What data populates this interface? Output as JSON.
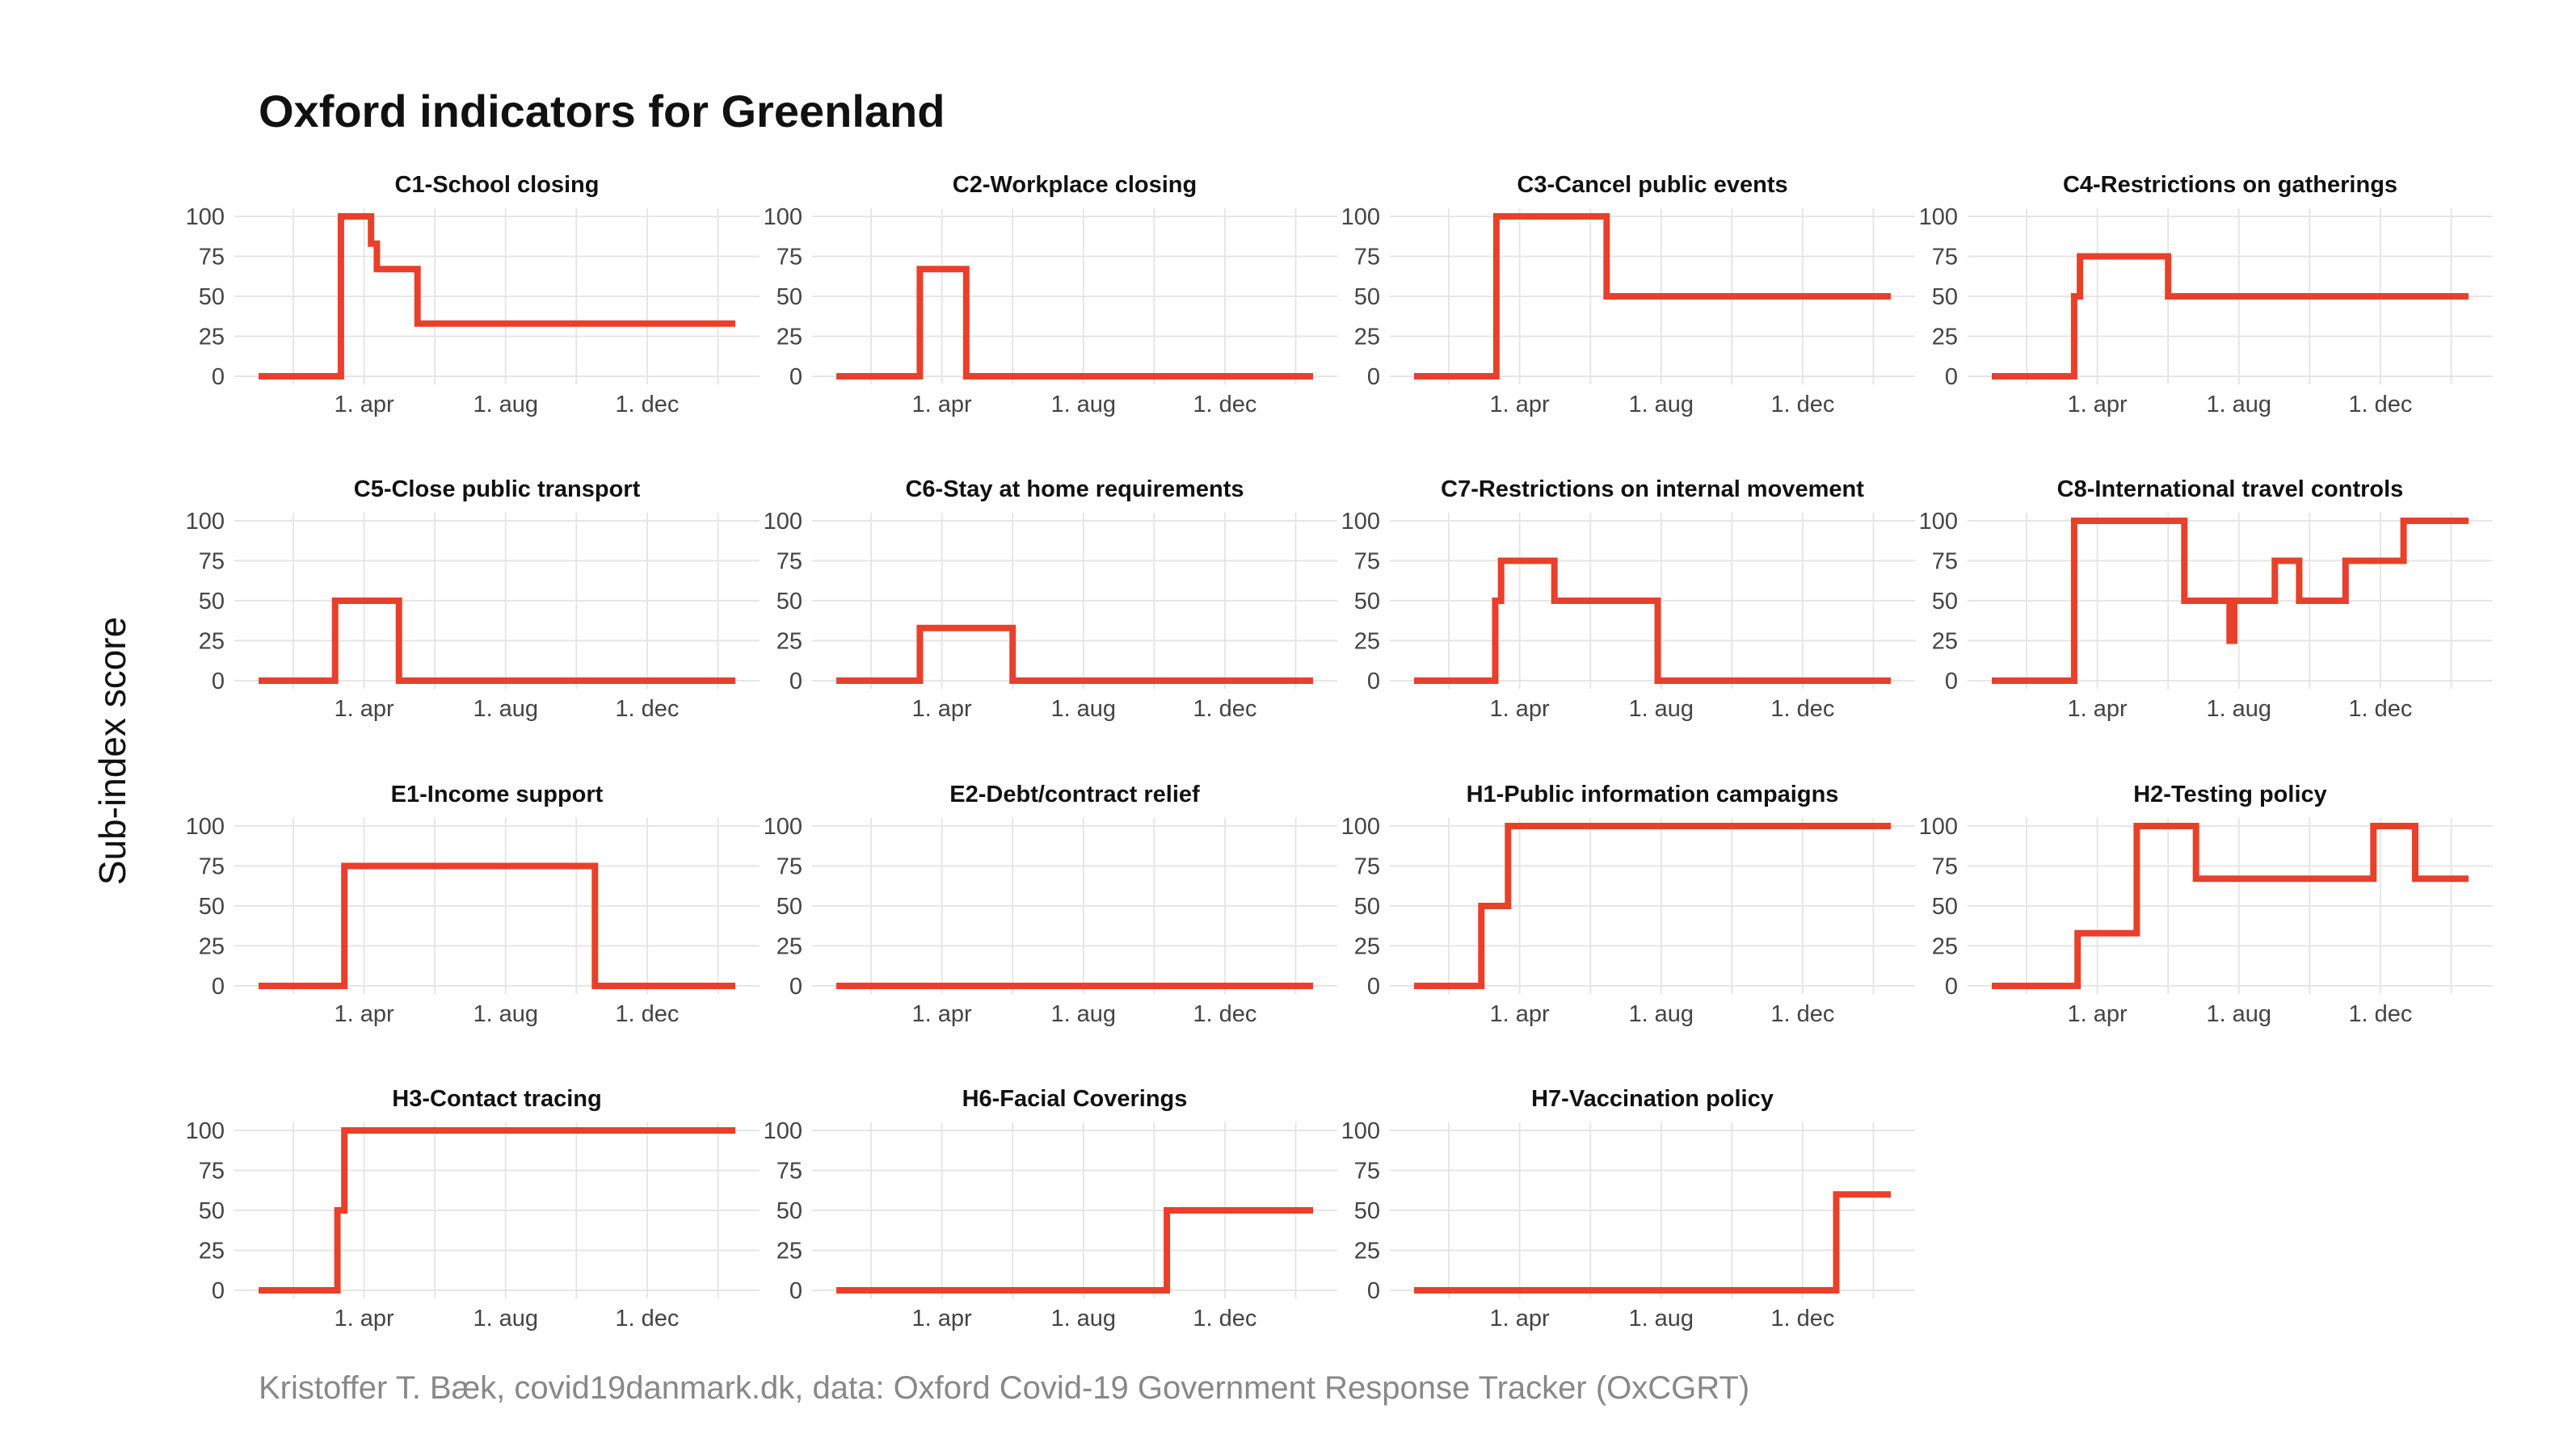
{
  "title": "Oxford indicators for Greenland",
  "ylabel": "Sub-index score",
  "caption": "Kristoffer T. Bæk, covid19danmark.dk, data: Oxford Covid-19 Government Response Tracker (OxCGRT)",
  "colors": {
    "line": "#e8402a",
    "grid": "#e6e6e6",
    "text": "#111111",
    "caption": "#888888"
  },
  "chart_data": {
    "type": "line",
    "facet_layout": {
      "columns": 4,
      "rows": 4
    },
    "x_axis": {
      "start": "2020-01-01",
      "end": "2021-02-15",
      "ticks": [
        "2020-04-01",
        "2020-08-01",
        "2020-12-01"
      ],
      "tick_labels": [
        "1. apr",
        "1. aug",
        "1. dec"
      ]
    },
    "y_axis": {
      "range": [
        0,
        100
      ],
      "ticks": [
        0,
        25,
        50,
        75,
        100
      ],
      "tick_labels": [
        "0",
        "25",
        "50",
        "75",
        "100"
      ]
    },
    "grid": true,
    "panels": [
      {
        "name": "C1-School closing",
        "points": [
          [
            "2020-01-01",
            0
          ],
          [
            "2020-03-12",
            0
          ],
          [
            "2020-03-12",
            100
          ],
          [
            "2020-04-07",
            100
          ],
          [
            "2020-04-07",
            83
          ],
          [
            "2020-04-12",
            83
          ],
          [
            "2020-04-12",
            67
          ],
          [
            "2020-05-17",
            67
          ],
          [
            "2020-05-17",
            33
          ],
          [
            "2021-02-15",
            33
          ]
        ]
      },
      {
        "name": "C2-Workplace closing",
        "points": [
          [
            "2020-01-01",
            0
          ],
          [
            "2020-03-13",
            0
          ],
          [
            "2020-03-13",
            67
          ],
          [
            "2020-04-22",
            67
          ],
          [
            "2020-04-22",
            0
          ],
          [
            "2021-02-15",
            0
          ]
        ]
      },
      {
        "name": "C3-Cancel public events",
        "points": [
          [
            "2020-01-01",
            0
          ],
          [
            "2020-03-12",
            0
          ],
          [
            "2020-03-12",
            100
          ],
          [
            "2020-06-15",
            100
          ],
          [
            "2020-06-15",
            50
          ],
          [
            "2021-02-15",
            50
          ]
        ]
      },
      {
        "name": "C4-Restrictions on gatherings",
        "points": [
          [
            "2020-01-01",
            0
          ],
          [
            "2020-03-12",
            0
          ],
          [
            "2020-03-12",
            50
          ],
          [
            "2020-03-17",
            50
          ],
          [
            "2020-03-17",
            75
          ],
          [
            "2020-06-01",
            75
          ],
          [
            "2020-06-01",
            50
          ],
          [
            "2021-02-15",
            50
          ]
        ]
      },
      {
        "name": "C5-Close public transport",
        "points": [
          [
            "2020-01-01",
            0
          ],
          [
            "2020-03-07",
            0
          ],
          [
            "2020-03-07",
            50
          ],
          [
            "2020-05-01",
            50
          ],
          [
            "2020-05-01",
            0
          ],
          [
            "2021-02-15",
            0
          ]
        ]
      },
      {
        "name": "C6-Stay at home requirements",
        "points": [
          [
            "2020-01-01",
            0
          ],
          [
            "2020-03-13",
            0
          ],
          [
            "2020-03-13",
            33
          ],
          [
            "2020-06-01",
            33
          ],
          [
            "2020-06-01",
            0
          ],
          [
            "2021-02-15",
            0
          ]
        ]
      },
      {
        "name": "C7-Restrictions on internal movement",
        "points": [
          [
            "2020-01-01",
            0
          ],
          [
            "2020-03-11",
            0
          ],
          [
            "2020-03-11",
            50
          ],
          [
            "2020-03-16",
            50
          ],
          [
            "2020-03-16",
            75
          ],
          [
            "2020-05-01",
            75
          ],
          [
            "2020-05-01",
            50
          ],
          [
            "2020-07-29",
            50
          ],
          [
            "2020-07-29",
            0
          ],
          [
            "2021-02-15",
            0
          ]
        ]
      },
      {
        "name": "C8-International travel controls",
        "points": [
          [
            "2020-01-01",
            0
          ],
          [
            "2020-03-12",
            0
          ],
          [
            "2020-03-12",
            100
          ],
          [
            "2020-06-15",
            100
          ],
          [
            "2020-06-15",
            50
          ],
          [
            "2020-07-24",
            50
          ],
          [
            "2020-07-24",
            25
          ],
          [
            "2020-07-28",
            25
          ],
          [
            "2020-07-28",
            50
          ],
          [
            "2020-09-01",
            50
          ],
          [
            "2020-09-01",
            75
          ],
          [
            "2020-09-22",
            75
          ],
          [
            "2020-09-22",
            50
          ],
          [
            "2020-11-01",
            50
          ],
          [
            "2020-11-01",
            75
          ],
          [
            "2020-12-21",
            75
          ],
          [
            "2020-12-21",
            100
          ],
          [
            "2021-02-15",
            100
          ]
        ]
      },
      {
        "name": "E1-Income support",
        "points": [
          [
            "2020-01-01",
            0
          ],
          [
            "2020-03-15",
            0
          ],
          [
            "2020-03-15",
            75
          ],
          [
            "2020-10-17",
            75
          ],
          [
            "2020-10-17",
            0
          ],
          [
            "2021-02-15",
            0
          ]
        ]
      },
      {
        "name": "E2-Debt/contract relief",
        "points": [
          [
            "2020-01-01",
            0
          ],
          [
            "2021-02-15",
            0
          ]
        ]
      },
      {
        "name": "H1-Public information campaigns",
        "points": [
          [
            "2020-01-01",
            0
          ],
          [
            "2020-02-28",
            0
          ],
          [
            "2020-02-28",
            50
          ],
          [
            "2020-03-22",
            50
          ],
          [
            "2020-03-22",
            100
          ],
          [
            "2021-02-15",
            100
          ]
        ]
      },
      {
        "name": "H2-Testing policy",
        "points": [
          [
            "2020-01-01",
            0
          ],
          [
            "2020-03-15",
            0
          ],
          [
            "2020-03-15",
            33
          ],
          [
            "2020-05-05",
            33
          ],
          [
            "2020-05-05",
            100
          ],
          [
            "2020-06-25",
            100
          ],
          [
            "2020-06-25",
            67
          ],
          [
            "2020-11-25",
            67
          ],
          [
            "2020-11-25",
            100
          ],
          [
            "2020-12-31",
            100
          ],
          [
            "2020-12-31",
            67
          ],
          [
            "2021-02-15",
            67
          ]
        ]
      },
      {
        "name": "H3-Contact tracing",
        "points": [
          [
            "2020-01-01",
            0
          ],
          [
            "2020-03-09",
            0
          ],
          [
            "2020-03-09",
            50
          ],
          [
            "2020-03-15",
            50
          ],
          [
            "2020-03-15",
            100
          ],
          [
            "2021-02-15",
            100
          ]
        ]
      },
      {
        "name": "H6-Facial Coverings",
        "points": [
          [
            "2020-01-01",
            0
          ],
          [
            "2020-10-12",
            0
          ],
          [
            "2020-10-12",
            50
          ],
          [
            "2021-02-15",
            50
          ]
        ]
      },
      {
        "name": "H7-Vaccination policy",
        "points": [
          [
            "2020-01-01",
            0
          ],
          [
            "2020-12-30",
            0
          ],
          [
            "2020-12-30",
            60
          ],
          [
            "2021-02-15",
            60
          ]
        ]
      }
    ]
  }
}
